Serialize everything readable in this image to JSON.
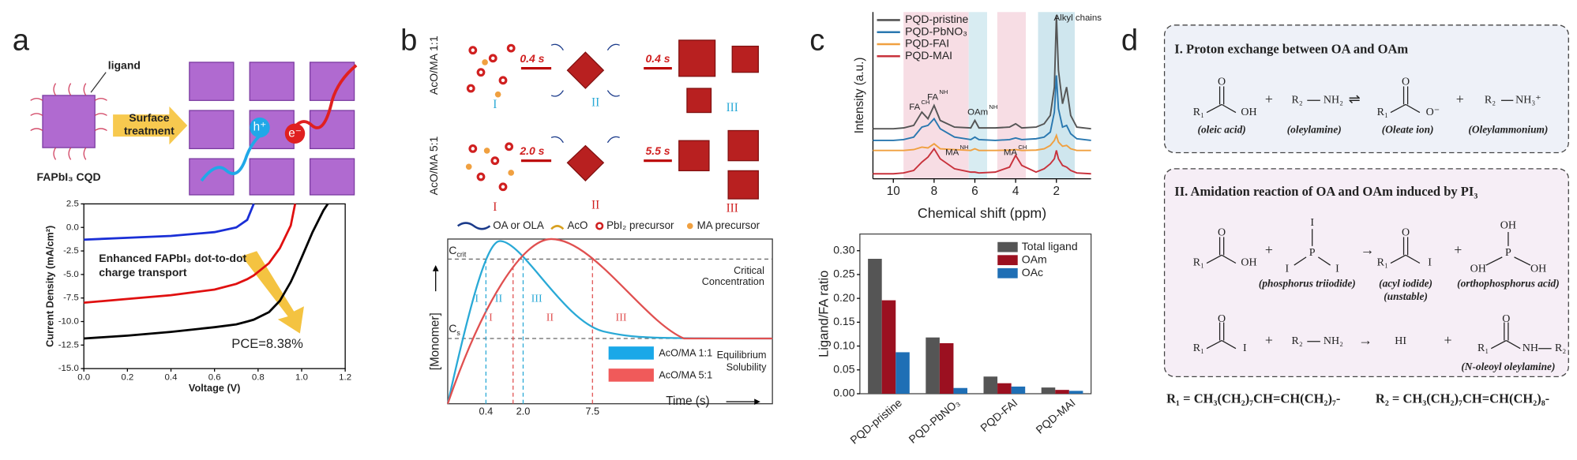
{
  "panel_labels": [
    "a",
    "b",
    "c",
    "d"
  ],
  "panel_a": {
    "ligand": "ligand",
    "surface_treatment": [
      "Surface",
      "treatment"
    ],
    "hole": "h⁺",
    "electron": "e⁻",
    "cqd": "FAPbI₃ CQD"
  },
  "panel_b": {
    "rows": [
      "AcO/MA 1:1",
      "AcO/MA 5:1"
    ],
    "times": [
      "0.4 s",
      "0.4 s",
      "2.0 s",
      "5.5 s"
    ],
    "stages": [
      "I",
      "II",
      "III"
    ],
    "legend": [
      "OA or OLA",
      "AcO",
      "PbI₂ precursor",
      "MA precursor"
    ],
    "plot": {
      "y_label": "[Monomer]",
      "x_label": "Time (s)",
      "c_crit": [
        "C",
        "crit"
      ],
      "c_s": [
        "C",
        "s"
      ],
      "critical": [
        "Critical",
        "Concentration"
      ],
      "equilibrium": [
        "Equilibrium",
        "Solubility"
      ],
      "x_marks": [
        "0.4",
        "2.0",
        "7.5"
      ],
      "legend": [
        "AcO/MA 1:1",
        "AcO/MA 5:1"
      ]
    }
  },
  "chart_data": [
    {
      "type": "line",
      "x_label": "Voltage (V)",
      "y_label": "Current Density (mA/cm²)",
      "annotations": [
        "Enhanced FAPbI₃ dot-to-dot",
        "charge transport",
        "PCE=8.38%"
      ],
      "x": [
        0,
        0.2,
        0.4,
        0.6,
        0.7,
        0.75,
        0.78,
        0.85,
        0.9,
        0.95,
        0.97,
        1.0,
        1.05,
        1.1,
        1.12
      ],
      "series": [
        {
          "color": "#1a2fd6",
          "values": [
            -1.3,
            -1.1,
            -0.9,
            -0.5,
            0,
            0.8,
            2.5,
            null,
            null,
            null,
            null,
            null,
            null,
            null,
            null
          ]
        },
        {
          "color": "#e01010",
          "values": [
            -8,
            -7.6,
            -7.2,
            -6.6,
            -6.0,
            -5.5,
            -5.1,
            -3.8,
            -2.2,
            0.2,
            2.5,
            null,
            null,
            null,
            null
          ]
        },
        {
          "color": "#000000",
          "values": [
            -11.8,
            -11.5,
            -11.1,
            -10.6,
            -10.3,
            -10.0,
            -9.8,
            -9.0,
            -7.8,
            -5.8,
            -4.8,
            -3.2,
            -0.5,
            1.8,
            2.5
          ]
        }
      ],
      "xlim": [
        0,
        1.2
      ],
      "xticks": [
        {
          "value": 0,
          "label": "0.0"
        },
        0.2,
        0.4,
        0.6,
        0.8,
        {
          "value": 1,
          "label": "1.0"
        },
        1.2
      ],
      "ylim": [
        -15,
        2.5
      ],
      "yticks": [
        {
          "value": -15,
          "label": "-15.0"
        },
        -12.5,
        {
          "value": -10,
          "label": "-10.0"
        },
        -7.5,
        {
          "value": -5,
          "label": "-5.0"
        },
        -2.5,
        {
          "value": 0,
          "label": "0.0"
        },
        2.5
      ]
    },
    {
      "type": "line",
      "x_label": "Chemical shift (ppm)",
      "y_label": "Intensity (a.u.)",
      "x": [
        11,
        10,
        9.5,
        9,
        8.6,
        8.3,
        8,
        7.7,
        7,
        6.2,
        6,
        5.8,
        5,
        4.3,
        4,
        3.7,
        3,
        2.6,
        2.3,
        2.1,
        2,
        1.9,
        1.7,
        1.5,
        1.3,
        1,
        0.3
      ],
      "series": [
        {
          "name": "PQD-pristine",
          "color": "#555555",
          "values": [
            3.0,
            3.0,
            3.05,
            3.2,
            4.0,
            3.6,
            4.4,
            3.5,
            3.1,
            3.05,
            3.5,
            3.05,
            3.05,
            3.1,
            3.3,
            3.05,
            3.1,
            3.3,
            3.8,
            5.5,
            9.8,
            6.5,
            4.5,
            5.5,
            3.8,
            3.1,
            3.0
          ]
        },
        {
          "name": "PQD-PbNO₃",
          "color": "#2a78b0",
          "values": [
            2.3,
            2.3,
            2.35,
            2.5,
            3.1,
            3.2,
            3.6,
            3.0,
            2.5,
            2.35,
            2.5,
            2.35,
            2.3,
            2.35,
            2.45,
            2.35,
            2.4,
            2.5,
            2.8,
            4.0,
            6.2,
            4.2,
            3.1,
            3.2,
            2.7,
            2.4,
            2.3
          ]
        },
        {
          "name": "PQD-FAI",
          "color": "#f0a040",
          "values": [
            1.7,
            1.7,
            1.7,
            1.75,
            1.9,
            1.85,
            2.1,
            1.8,
            1.75,
            1.7,
            1.8,
            1.7,
            1.7,
            1.72,
            1.75,
            1.7,
            1.72,
            1.8,
            2.0,
            2.3,
            2.6,
            2.2,
            1.95,
            2.0,
            1.8,
            1.7,
            1.7
          ]
        },
        {
          "name": "PQD-MAI",
          "color": "#c8323c",
          "values": [
            0.3,
            0.3,
            0.35,
            0.5,
            1.0,
            1.3,
            1.8,
            1.2,
            0.6,
            0.4,
            0.4,
            0.35,
            0.4,
            0.7,
            1.4,
            0.8,
            0.4,
            0.6,
            0.9,
            1.2,
            1.7,
            1.2,
            0.8,
            0.7,
            0.5,
            0.35,
            0.3
          ]
        }
      ],
      "bands": [
        {
          "range": [
            9.5,
            6.3
          ],
          "color": "#f7dde4"
        },
        {
          "range": [
            6.3,
            5.4
          ],
          "color": "#d8ecf2"
        },
        {
          "range": [
            4.9,
            3.5
          ],
          "color": "#f7dde4"
        },
        {
          "range": [
            2.9,
            1.1
          ],
          "color": "#cfe6ee"
        }
      ],
      "annotations": [
        {
          "text": "FA",
          "sup": "CH"
        },
        {
          "text": "FA",
          "sup": "NH"
        },
        {
          "text": "OAm",
          "sup": "NH"
        },
        {
          "text": "MA",
          "sup": "NH"
        },
        {
          "text": "MA",
          "sup": "CH"
        },
        {
          "text": "Alkyl chains"
        }
      ],
      "xlim": [
        11,
        0.3
      ],
      "xticks": [
        10,
        8,
        6,
        4,
        2
      ],
      "ylim": [
        0,
        10
      ]
    },
    {
      "type": "bar",
      "y_label": "Ligand/FA ratio",
      "categories": [
        "PQD-pristine",
        "PQD-PbNO₃",
        "PQD-FAI",
        "PQD-MAI"
      ],
      "series": [
        {
          "name": "Total ligand",
          "color": "#555555",
          "values": [
            0.283,
            0.118,
            0.036,
            0.013
          ]
        },
        {
          "name": "OAm",
          "color": "#9b1020",
          "values": [
            0.196,
            0.106,
            0.022,
            0.008
          ]
        },
        {
          "name": "OAc",
          "color": "#1f6fb5",
          "values": [
            0.087,
            0.012,
            0.015,
            0.006
          ]
        }
      ],
      "ylim": [
        0,
        0.335
      ],
      "yticks": [
        {
          "value": 0,
          "label": "0.00"
        },
        0.05,
        {
          "value": 0.1,
          "label": "0.10"
        },
        0.15,
        {
          "value": 0.2,
          "label": "0.20"
        },
        0.25,
        {
          "value": 0.3,
          "label": "0.30"
        }
      ]
    }
  ],
  "panel_d": {
    "box1": {
      "title": "I. Proton exchange between OA and OAm",
      "atoms": [
        "R₁",
        "O",
        "OH",
        "R₂",
        "NH₂",
        "R₁",
        "O",
        "O⁻",
        "R₂",
        "NH₃⁺"
      ],
      "operators": [
        "+",
        "⇌",
        "+"
      ],
      "names": [
        "(oleic acid)",
        "(oleylamine)",
        "(Oleate ion)",
        "(Oleylammonium)"
      ]
    },
    "box2": {
      "title": "II. Amidation reaction of OA and OAm induced by PI₃",
      "atoms": [
        "O",
        "R₁",
        "OH",
        "I",
        "P",
        "I",
        "I",
        "O",
        "R₁",
        "I",
        "OH",
        "P",
        "OH",
        "OH",
        "O",
        "R₁",
        "I",
        "R₂",
        "NH₂",
        "HI",
        "O",
        "R₁",
        "NH",
        "R₂"
      ],
      "operators": [
        "+",
        "→",
        "+",
        "+",
        "→",
        "+"
      ],
      "names": [
        "(phosphorus triiodide)",
        "(acyl iodide)",
        "(unstable)",
        "(orthophosphorus acid)",
        "(N-oleoyl oleylamine)"
      ]
    },
    "definitions": [
      "R₁ = CH₃(CH₂)₇CH=CH(CH₂)₇-",
      "R₂ = CH₃(CH₂)₇CH=CH(CH₂)₈-"
    ]
  }
}
